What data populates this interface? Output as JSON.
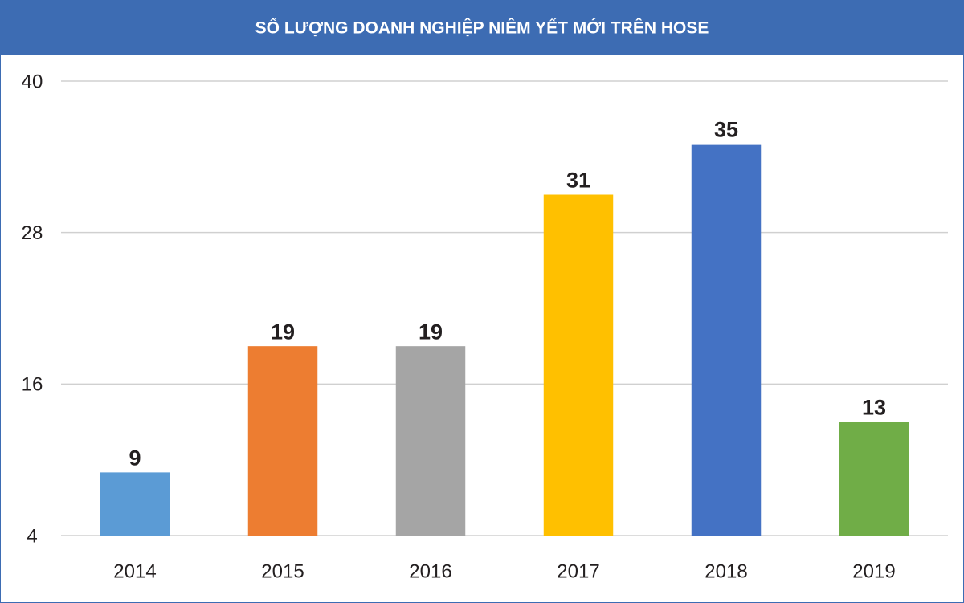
{
  "chart_data": {
    "type": "bar",
    "title": "SỐ LƯỢNG DOANH NGHIỆP NIÊM YẾT MỚI TRÊN HOSE",
    "categories": [
      "2014",
      "2015",
      "2016",
      "2017",
      "2018",
      "2019"
    ],
    "values": [
      9,
      19,
      19,
      31,
      35,
      13
    ],
    "colors": [
      "#5b9bd5",
      "#ed7d31",
      "#a5a5a5",
      "#ffc000",
      "#4472c4",
      "#70ad47"
    ],
    "ylim": [
      4,
      40
    ],
    "yticks": [
      4,
      16,
      28,
      40
    ],
    "grid": true
  }
}
